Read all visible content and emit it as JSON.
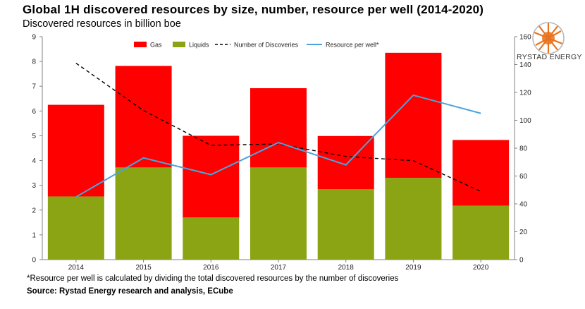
{
  "title": "Global 1H discovered resources by size, number, resource per well (2014-2020)",
  "subtitle": "Discovered resources in billion boe",
  "footnote": "*Resource per well is calculated by dividing the total discovered resources by the number of discoveries",
  "source": "Source: Rystad Energy research and analysis, ECube",
  "logo_text": "RYSTAD ENERGY",
  "colors": {
    "gas": "#ff0000",
    "liquids": "#8aa413",
    "discoveries": "#000000",
    "resource_per_well": "#4ba3dd",
    "logo_orange": "#e8731e"
  },
  "chart_data": {
    "type": "bar",
    "stacked": true,
    "categories": [
      "2014",
      "2015",
      "2016",
      "2017",
      "2018",
      "2019",
      "2020"
    ],
    "series": [
      {
        "name": "Gas",
        "type": "bar",
        "axis": "left",
        "values": [
          3.7,
          4.1,
          3.3,
          3.2,
          2.15,
          5.05,
          2.65
        ]
      },
      {
        "name": "Liquids",
        "type": "bar",
        "axis": "left",
        "values": [
          2.55,
          3.72,
          1.7,
          3.72,
          2.84,
          3.3,
          2.18
        ]
      },
      {
        "name": "Number of Discoveries",
        "type": "line",
        "style": "dashed",
        "axis": "right",
        "values": [
          141,
          107,
          82,
          83,
          74,
          71,
          49
        ]
      },
      {
        "name": "Resource per well*",
        "type": "line",
        "axis": "right",
        "values": [
          45,
          73,
          61,
          84,
          68,
          118,
          105
        ]
      }
    ],
    "ylim_left": [
      0,
      9
    ],
    "yticks_left": [
      0,
      1,
      2,
      3,
      4,
      5,
      6,
      7,
      8,
      9
    ],
    "ylim_right": [
      0,
      160
    ],
    "yticks_right": [
      0,
      20,
      40,
      60,
      80,
      100,
      120,
      140,
      160
    ],
    "xlabel": "",
    "ylabel": "",
    "legend_position": "top",
    "grid": false
  }
}
